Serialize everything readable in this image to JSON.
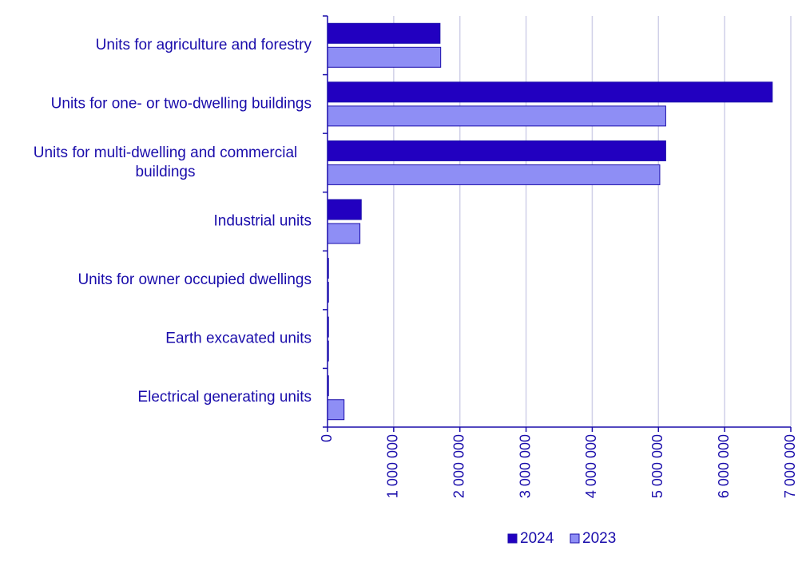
{
  "chart_data": {
    "type": "bar",
    "orientation": "horizontal",
    "categories": [
      [
        "Units for agriculture and forestry"
      ],
      [
        "Units for one- or two-dwelling buildings"
      ],
      [
        "Units for multi-dwelling and commercial",
        "buildings"
      ],
      [
        "Industrial units"
      ],
      [
        "Units for owner occupied dwellings"
      ],
      [
        "Earth excavated units"
      ],
      [
        "Electrical generating units"
      ]
    ],
    "series": [
      {
        "name": "2024",
        "color": "#2200c0",
        "values": [
          1700000,
          6720000,
          5110000,
          510000,
          15000,
          15000,
          15000
        ]
      },
      {
        "name": "2023",
        "color": "#8e8ef5",
        "values": [
          1710000,
          5110000,
          5020000,
          490000,
          15000,
          15000,
          250000
        ]
      }
    ],
    "xlim": [
      0,
      7000000
    ],
    "xticks": [
      0,
      1000000,
      2000000,
      3000000,
      4000000,
      5000000,
      6000000,
      7000000
    ],
    "xtick_labels": [
      "0",
      "1 000 000",
      "2 000 000",
      "3 000 000",
      "4 000 000",
      "5 000 000",
      "6 000 000",
      "7 000 000"
    ],
    "grid": "vertical",
    "legend_position": "bottom-center",
    "axis_color": "#1a0dab",
    "grid_color": "#d0d0e8"
  }
}
